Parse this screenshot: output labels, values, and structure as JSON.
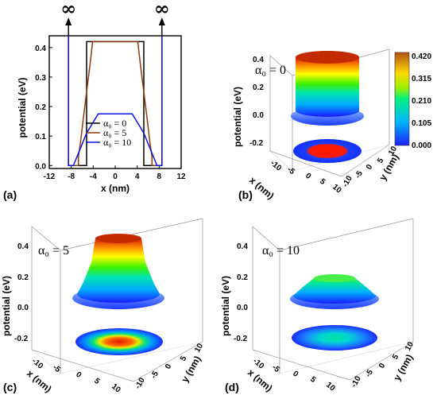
{
  "chart_data": [
    {
      "panel": "(a)",
      "type": "line",
      "xlabel": "x (nm)",
      "ylabel": "potential (eV)",
      "xlim": [
        -12,
        12
      ],
      "ylim": [
        -0.01,
        0.44
      ],
      "xticks": [
        "-12",
        "-8",
        "-4",
        "0",
        "4",
        "8",
        "12"
      ],
      "yticks": [
        "0.0",
        "0.1",
        "0.2",
        "0.3",
        "0.4"
      ],
      "infinity_label": "∞",
      "series": [
        {
          "name": "α₀ = 0",
          "color": "#000000",
          "points": [
            [
              -8.5,
              0.44
            ],
            [
              -8.5,
              0
            ],
            [
              -5.2,
              0
            ],
            [
              -5.2,
              0.42
            ],
            [
              5.2,
              0.42
            ],
            [
              5.2,
              0
            ],
            [
              8.5,
              0
            ],
            [
              8.5,
              0.44
            ]
          ]
        },
        {
          "name": "α₀ = 5",
          "color": "#8b3a0e",
          "points": [
            [
              -8.5,
              0.44
            ],
            [
              -8.5,
              0
            ],
            [
              -6.7,
              0
            ],
            [
              -6.7,
              0.03
            ],
            [
              -6.3,
              0.08
            ],
            [
              -5.8,
              0.16
            ],
            [
              -5.2,
              0.25
            ],
            [
              -4.6,
              0.34
            ],
            [
              -4.1,
              0.42
            ],
            [
              4.1,
              0.42
            ],
            [
              4.6,
              0.34
            ],
            [
              5.2,
              0.25
            ],
            [
              5.8,
              0.16
            ],
            [
              6.3,
              0.08
            ],
            [
              6.7,
              0.03
            ],
            [
              6.7,
              0
            ],
            [
              8.5,
              0
            ],
            [
              8.5,
              0.44
            ]
          ]
        },
        {
          "name": "α₀ = 10",
          "color": "#1010e0",
          "points": [
            [
              -8.5,
              0.44
            ],
            [
              -8.5,
              0
            ],
            [
              -7.6,
              0.0
            ],
            [
              -5.2,
              0.11
            ],
            [
              -3.1,
              0.175
            ],
            [
              3.1,
              0.175
            ],
            [
              5.2,
              0.11
            ],
            [
              7.6,
              0.0
            ],
            [
              8.5,
              0
            ],
            [
              8.5,
              0.44
            ]
          ]
        }
      ]
    },
    {
      "panel": "(b)",
      "type": "surface3d",
      "label": "α₀ = 0",
      "xlabel": "x (nm)",
      "ylabel": "y (nm)",
      "zlabel": "potential (eV)",
      "zticks": [
        "0.4",
        "0.2",
        "0.0",
        "-0.2"
      ],
      "xticks": [
        "-10",
        "-5",
        "0",
        "5",
        "10"
      ],
      "yticks": [
        "-10",
        "-5",
        "0",
        "5",
        "10"
      ],
      "zlim": [
        -0.2,
        0.42
      ],
      "colorbar": {
        "ticks": [
          "0.420",
          "0.315",
          "0.210",
          "0.105",
          "0.000"
        ]
      }
    },
    {
      "panel": "(c)",
      "type": "surface3d",
      "label": "α₀ = 5",
      "xlabel": "x (nm)",
      "ylabel": "y (nm)",
      "zlabel": "potential (eV)",
      "zticks": [
        "0.4",
        "0.2",
        "0.0",
        "-0.2"
      ],
      "xticks": [
        "-10",
        "-5",
        "0",
        "5",
        "10"
      ],
      "yticks": [
        "-10",
        "-5",
        "0",
        "5",
        "10"
      ],
      "zlim": [
        -0.2,
        0.42
      ]
    },
    {
      "panel": "(d)",
      "type": "surface3d",
      "label": "α₀ = 10",
      "xlabel": "x (nm)",
      "ylabel": "y (nm)",
      "zlabel": "potential (eV)",
      "zticks": [
        "0.4",
        "0.2",
        "0.0",
        "-0.2"
      ],
      "xticks": [
        "-10",
        "-5",
        "0",
        "5",
        "10"
      ],
      "yticks": [
        "-10",
        "-5",
        "0",
        "5",
        "10"
      ],
      "zlim": [
        -0.2,
        0.42
      ]
    }
  ]
}
